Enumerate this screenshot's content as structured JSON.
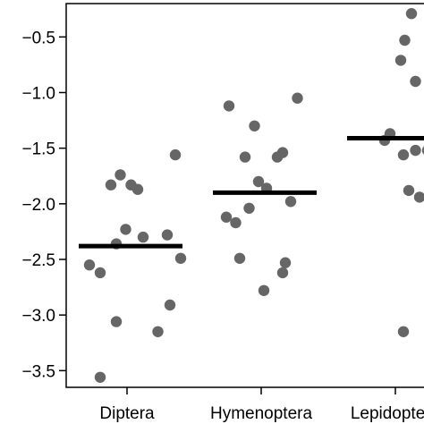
{
  "chart_data": {
    "type": "scatter",
    "title": "",
    "xlabel": "",
    "ylabel": "",
    "categories": [
      "Diptera",
      "Hymenoptera",
      "Lepidoptera"
    ],
    "ylim": [
      -3.65,
      -0.2
    ],
    "yticks": [
      {
        "value": -0.5,
        "label": "-0.5"
      },
      {
        "value": -1.0,
        "label": "-1.0"
      },
      {
        "value": -1.5,
        "label": "-1.5"
      },
      {
        "value": -2.0,
        "label": "-2.0"
      },
      {
        "value": -2.5,
        "label": "-2.5"
      },
      {
        "value": -3.0,
        "label": "-3.0"
      },
      {
        "value": -3.5,
        "label": "-3.5"
      }
    ],
    "grid": false,
    "point_color": "#666666",
    "mean_color": "#000000",
    "groups": [
      {
        "category": "Diptera",
        "mean": -2.38,
        "points": [
          {
            "offset": -0.05,
            "y": -1.74
          },
          {
            "offset": -0.12,
            "y": -1.83
          },
          {
            "offset": 0.03,
            "y": -1.83
          },
          {
            "offset": 0.08,
            "y": -1.87
          },
          {
            "offset": 0.36,
            "y": -1.56
          },
          {
            "offset": -0.01,
            "y": -2.23
          },
          {
            "offset": -0.28,
            "y": -2.55
          },
          {
            "offset": -0.2,
            "y": -2.62
          },
          {
            "offset": -0.08,
            "y": -2.36
          },
          {
            "offset": 0.12,
            "y": -2.3
          },
          {
            "offset": 0.3,
            "y": -2.28
          },
          {
            "offset": 0.4,
            "y": -2.49
          },
          {
            "offset": 0.32,
            "y": -2.91
          },
          {
            "offset": -0.08,
            "y": -3.06
          },
          {
            "offset": 0.23,
            "y": -3.15
          },
          {
            "offset": -0.2,
            "y": -3.56
          }
        ]
      },
      {
        "category": "Hymenoptera",
        "mean": -1.9,
        "points": [
          {
            "offset": -0.24,
            "y": -1.12
          },
          {
            "offset": -0.05,
            "y": -1.3
          },
          {
            "offset": 0.27,
            "y": -1.05
          },
          {
            "offset": -0.12,
            "y": -1.58
          },
          {
            "offset": 0.12,
            "y": -1.58
          },
          {
            "offset": 0.16,
            "y": -1.54
          },
          {
            "offset": -0.02,
            "y": -1.8
          },
          {
            "offset": 0.04,
            "y": -1.86
          },
          {
            "offset": 0.22,
            "y": -1.98
          },
          {
            "offset": -0.26,
            "y": -2.12
          },
          {
            "offset": -0.19,
            "y": -2.17
          },
          {
            "offset": -0.09,
            "y": -2.04
          },
          {
            "offset": -0.16,
            "y": -2.49
          },
          {
            "offset": 0.18,
            "y": -2.53
          },
          {
            "offset": 0.16,
            "y": -2.62
          },
          {
            "offset": 0.02,
            "y": -2.78
          }
        ]
      },
      {
        "category": "Lepidoptera",
        "mean": -1.41,
        "points": [
          {
            "offset": 0.12,
            "y": -0.29
          },
          {
            "offset": 0.07,
            "y": -0.53
          },
          {
            "offset": 0.04,
            "y": -0.71
          },
          {
            "offset": 0.15,
            "y": -0.9
          },
          {
            "offset": -0.04,
            "y": -1.37
          },
          {
            "offset": -0.08,
            "y": -1.43
          },
          {
            "offset": 0.06,
            "y": -1.56
          },
          {
            "offset": 0.15,
            "y": -1.52
          },
          {
            "offset": 0.24,
            "y": -1.52
          },
          {
            "offset": 0.3,
            "y": -1.37
          },
          {
            "offset": 0.1,
            "y": -1.88
          },
          {
            "offset": 0.18,
            "y": -1.94
          },
          {
            "offset": 0.06,
            "y": -3.15
          }
        ]
      }
    ]
  }
}
